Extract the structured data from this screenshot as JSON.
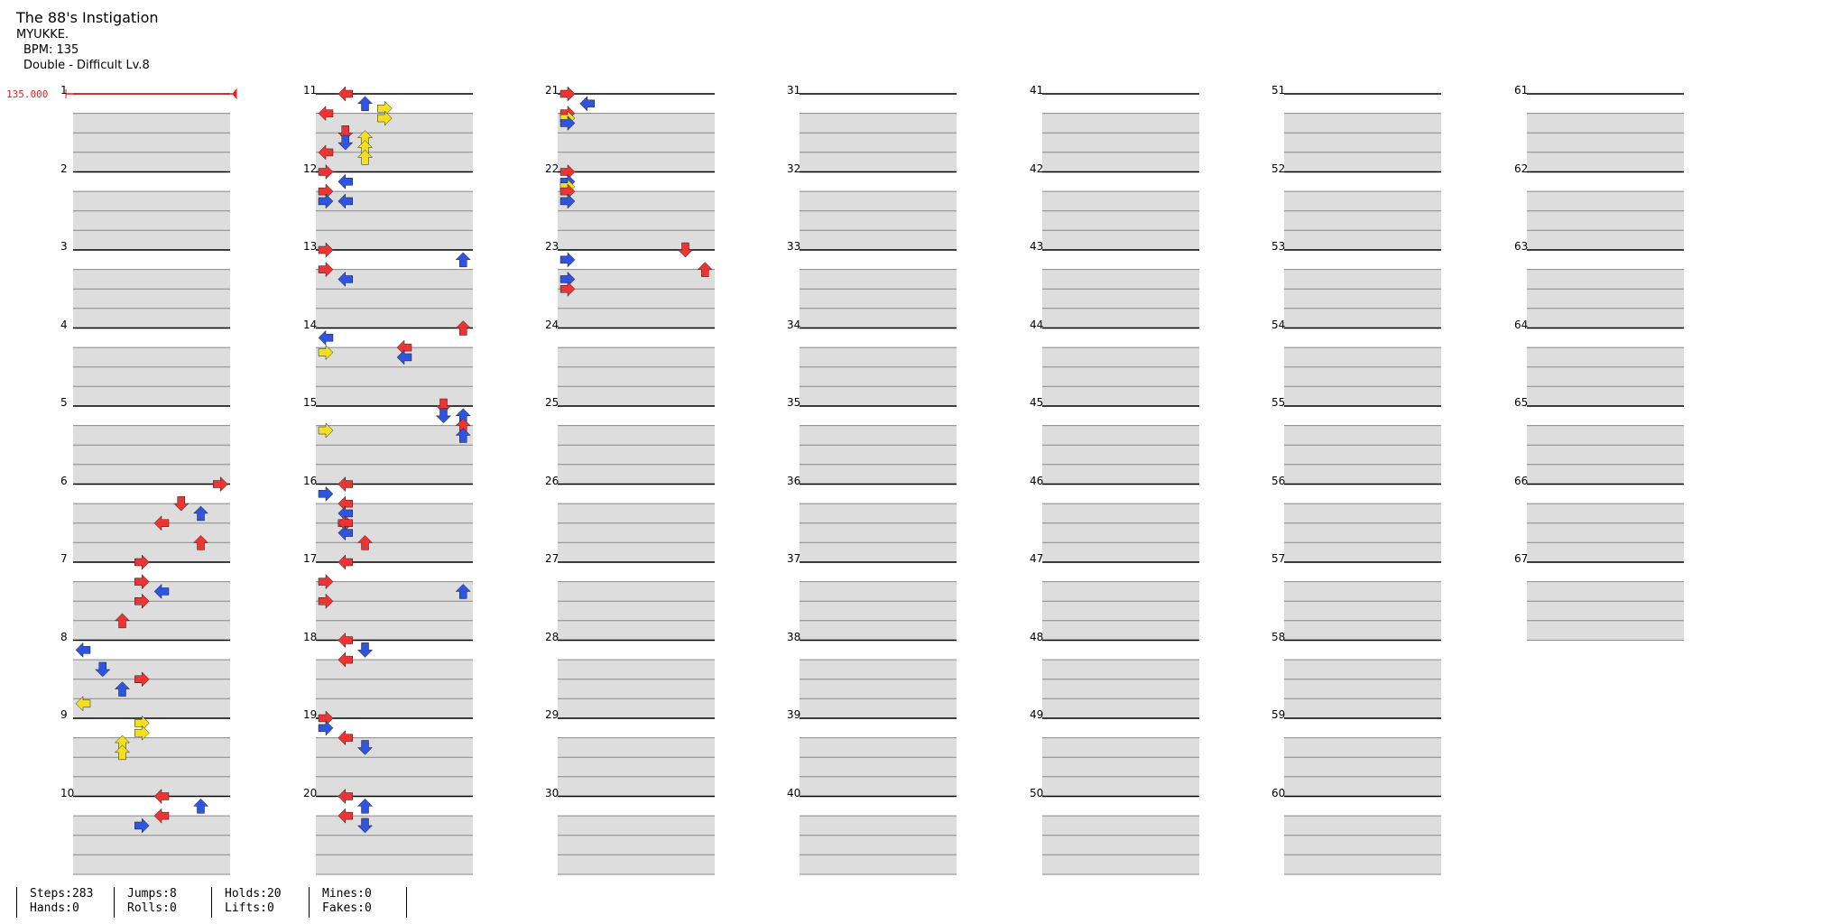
{
  "song": {
    "title": "The 88's Instigation",
    "artist": "MYUKKE.",
    "bpm_line": "BPM: 135",
    "difficulty_line": "Double - Difficult Lv.8"
  },
  "bpm_marker": "135.000",
  "measure_count": 67,
  "colors": {
    "quarter": "#ee3333",
    "eighth": "#2f54e0",
    "sixteenth": "#f2e020",
    "hold": "#8fe08f",
    "lane_band": "#dddddd",
    "bpm": "#e81f1f"
  },
  "notes": [
    [
      6,
      0,
      7,
      "R"
    ],
    [
      6,
      4,
      5,
      "D"
    ],
    [
      6,
      6,
      6,
      "U"
    ],
    [
      6,
      8,
      4,
      "L"
    ],
    [
      6,
      12,
      6,
      "U"
    ],
    [
      7,
      0,
      3,
      "R"
    ],
    [
      7,
      4,
      3,
      "R"
    ],
    [
      7,
      6,
      4,
      "L"
    ],
    [
      7,
      8,
      3,
      "R"
    ],
    [
      7,
      12,
      2,
      "U"
    ],
    [
      8,
      2,
      0,
      "L"
    ],
    [
      8,
      6,
      1,
      "D"
    ],
    [
      8,
      8,
      3,
      "R"
    ],
    [
      8,
      10,
      2,
      "U"
    ],
    [
      8,
      13,
      0,
      "L"
    ],
    [
      9,
      1,
      3,
      "R"
    ],
    [
      9,
      3,
      3,
      "R"
    ],
    [
      9,
      5,
      2,
      "U"
    ],
    [
      9,
      7,
      2,
      "U"
    ],
    [
      10,
      0,
      4,
      "L"
    ],
    [
      10,
      2,
      6,
      "U"
    ],
    [
      10,
      4,
      4,
      "L"
    ],
    [
      10,
      6,
      3,
      "R"
    ],
    [
      11,
      0,
      1,
      "L"
    ],
    [
      11,
      2,
      2,
      "U"
    ],
    [
      11,
      3,
      3,
      "R"
    ],
    [
      11,
      4,
      0,
      "L"
    ],
    [
      11,
      5,
      3,
      "R"
    ],
    [
      11,
      8,
      1,
      "D"
    ],
    [
      11,
      9,
      2,
      "U"
    ],
    [
      11,
      10,
      1,
      "D"
    ],
    [
      11,
      11,
      2,
      "U"
    ],
    [
      11,
      12,
      0,
      "L"
    ],
    [
      11,
      13,
      2,
      "U"
    ],
    [
      12,
      0,
      0,
      "R"
    ],
    [
      12,
      2,
      1,
      "L"
    ],
    [
      12,
      4,
      0,
      "R"
    ],
    [
      12,
      6,
      0,
      "R"
    ],
    [
      12,
      6,
      1,
      "L"
    ],
    [
      13,
      0,
      0,
      "R"
    ],
    [
      13,
      2,
      -1,
      "U"
    ],
    [
      13,
      4,
      0,
      "R"
    ],
    [
      13,
      6,
      1,
      "L"
    ],
    [
      14,
      0,
      -1,
      "U"
    ],
    [
      14,
      2,
      0,
      "L"
    ],
    [
      14,
      4,
      -4,
      "L"
    ],
    [
      14,
      5,
      0,
      "R"
    ],
    [
      14,
      6,
      -4,
      "L"
    ],
    [
      15,
      0,
      -2,
      "D"
    ],
    [
      15,
      2,
      -2,
      "D"
    ],
    [
      15,
      2,
      -1,
      "U"
    ],
    [
      15,
      4,
      -1,
      "U"
    ],
    [
      15,
      5,
      0,
      "R"
    ],
    [
      15,
      6,
      -1,
      "U"
    ],
    [
      16,
      0,
      1,
      "L"
    ],
    [
      16,
      2,
      0,
      "R"
    ],
    [
      16,
      4,
      1,
      "L"
    ],
    [
      16,
      6,
      1,
      "L"
    ],
    [
      16,
      8,
      1,
      "R"
    ],
    [
      16,
      8,
      1,
      "L"
    ],
    [
      16,
      10,
      1,
      "L"
    ],
    [
      16,
      12,
      2,
      "U"
    ],
    [
      17,
      0,
      1,
      "L"
    ],
    [
      17,
      4,
      0,
      "R"
    ],
    [
      17,
      6,
      -1,
      "U"
    ],
    [
      17,
      8,
      0,
      "R"
    ],
    [
      18,
      0,
      1,
      "L"
    ],
    [
      18,
      2,
      2,
      "D"
    ],
    [
      18,
      4,
      1,
      "L"
    ],
    [
      19,
      0,
      0,
      "R"
    ],
    [
      19,
      2,
      0,
      "R"
    ],
    [
      19,
      4,
      1,
      "L"
    ],
    [
      19,
      6,
      2,
      "D"
    ],
    [
      20,
      0,
      1,
      "L"
    ],
    [
      20,
      2,
      2,
      "U"
    ],
    [
      20,
      4,
      1,
      "L"
    ],
    [
      20,
      6,
      2,
      "D"
    ],
    [
      21,
      0,
      0,
      "R"
    ],
    [
      21,
      2,
      1,
      "L"
    ],
    [
      21,
      4,
      0,
      "R"
    ],
    [
      21,
      5,
      0,
      "R"
    ],
    [
      21,
      6,
      0,
      "R"
    ],
    [
      22,
      0,
      0,
      "R"
    ],
    [
      22,
      2,
      0,
      "R"
    ],
    [
      22,
      3,
      0,
      "R"
    ],
    [
      22,
      4,
      0,
      "R"
    ],
    [
      22,
      6,
      0,
      "R"
    ],
    [
      23,
      0,
      -2,
      "D"
    ],
    [
      23,
      2,
      0,
      "R"
    ],
    [
      23,
      4,
      -1,
      "U"
    ],
    [
      23,
      6,
      0,
      "R"
    ],
    [
      23,
      8,
      0,
      "R"
    ]
  ],
  "stats": {
    "col1": [
      "Steps:283",
      "Hands:0"
    ],
    "col2": [
      "Jumps:8",
      "Rolls:0"
    ],
    "col3": [
      "Holds:20",
      "Lifts:0"
    ],
    "col4": [
      "Mines:0",
      "Fakes:0"
    ]
  }
}
